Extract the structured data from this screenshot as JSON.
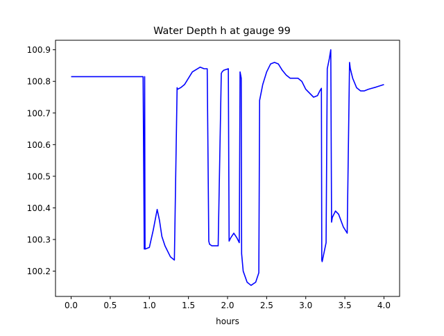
{
  "chart_data": {
    "type": "line",
    "title": "Water Depth h at gauge 99",
    "xlabel": "hours",
    "ylabel": "",
    "xlim": [
      -0.2,
      4.2
    ],
    "ylim": [
      100.12,
      100.93
    ],
    "xticks": [
      0.0,
      0.5,
      1.0,
      1.5,
      2.0,
      2.5,
      3.0,
      3.5,
      4.0
    ],
    "xtick_labels": [
      "0.0",
      "0.5",
      "1.0",
      "1.5",
      "2.0",
      "2.5",
      "3.0",
      "3.5",
      "4.0"
    ],
    "yticks": [
      100.2,
      100.3,
      100.4,
      100.5,
      100.6,
      100.7,
      100.8,
      100.9
    ],
    "ytick_labels": [
      "100.2",
      "100.3",
      "100.4",
      "100.5",
      "100.6",
      "100.7",
      "100.8",
      "100.9"
    ],
    "grid": false,
    "legend": "none",
    "series": [
      {
        "color": "#0000ff",
        "x": [
          0.0,
          0.91,
          0.92,
          0.935,
          0.94,
          0.945,
          0.95,
          1.0,
          1.05,
          1.1,
          1.13,
          1.16,
          1.2,
          1.27,
          1.32,
          1.355,
          1.36,
          1.4,
          1.45,
          1.55,
          1.65,
          1.7,
          1.74,
          1.76,
          1.77,
          1.8,
          1.88,
          1.92,
          1.93,
          1.95,
          2.01,
          2.02,
          2.04,
          2.08,
          2.12,
          2.15,
          2.16,
          2.175,
          2.18,
          2.2,
          2.25,
          2.3,
          2.36,
          2.4,
          2.41,
          2.45,
          2.5,
          2.55,
          2.6,
          2.65,
          2.7,
          2.75,
          2.8,
          2.9,
          2.95,
          3.0,
          3.1,
          3.15,
          3.18,
          3.2,
          3.205,
          3.21,
          3.26,
          3.275,
          3.3,
          3.32,
          3.33,
          3.34,
          3.38,
          3.42,
          3.48,
          3.53,
          3.56,
          3.57,
          3.6,
          3.65,
          3.7,
          3.75,
          3.8,
          3.9,
          4.0
        ],
        "y": [
          100.815,
          100.815,
          100.815,
          100.27,
          100.815,
          100.27,
          100.27,
          100.275,
          100.33,
          100.395,
          100.36,
          100.31,
          100.28,
          100.245,
          100.235,
          100.78,
          100.775,
          100.78,
          100.79,
          100.83,
          100.845,
          100.84,
          100.84,
          100.295,
          100.285,
          100.28,
          100.28,
          100.825,
          100.83,
          100.835,
          100.84,
          100.295,
          100.305,
          100.32,
          100.305,
          100.29,
          100.83,
          100.81,
          100.255,
          100.2,
          100.165,
          100.155,
          100.165,
          100.195,
          100.74,
          100.79,
          100.83,
          100.855,
          100.86,
          100.855,
          100.835,
          100.82,
          100.81,
          100.81,
          100.8,
          100.775,
          100.75,
          100.755,
          100.77,
          100.778,
          100.235,
          100.23,
          100.29,
          100.84,
          100.87,
          100.9,
          100.355,
          100.37,
          100.39,
          100.38,
          100.34,
          100.32,
          100.86,
          100.84,
          100.81,
          100.78,
          100.77,
          100.77,
          100.775,
          100.782,
          100.79
        ]
      }
    ]
  }
}
